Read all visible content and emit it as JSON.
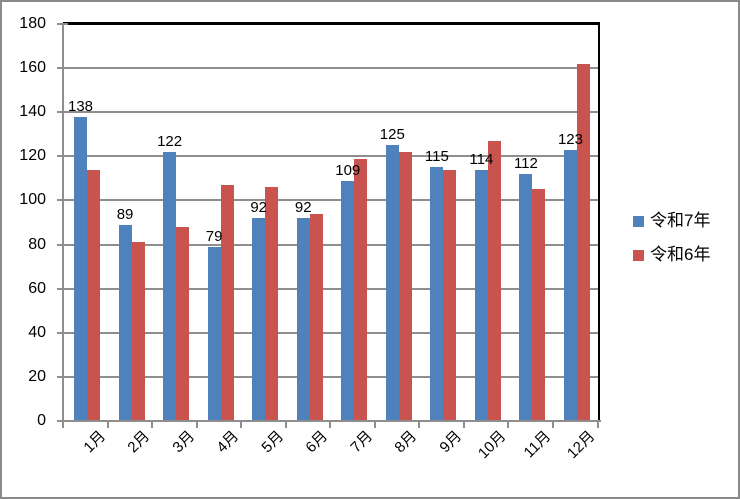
{
  "chart_data": {
    "type": "bar",
    "title": "",
    "xlabel": "",
    "ylabel": "",
    "categories": [
      "1月",
      "2月",
      "3月",
      "4月",
      "5月",
      "6月",
      "7月",
      "8月",
      "9月",
      "10月",
      "11月",
      "12月"
    ],
    "series": [
      {
        "name": "令和7年",
        "color": "#4F81BD",
        "values": [
          138,
          89,
          122,
          79,
          92,
          92,
          109,
          125,
          115,
          114,
          112,
          123
        ],
        "data_labels": true
      },
      {
        "name": "令和6年",
        "color": "#C9534F",
        "values": [
          114,
          81,
          88,
          107,
          106,
          94,
          119,
          122,
          114,
          127,
          105,
          162
        ],
        "data_labels": false
      }
    ],
    "ylim": [
      0,
      180
    ],
    "ytick_interval": 20,
    "y_tick_labels": [
      "0",
      "20",
      "40",
      "60",
      "80",
      "100",
      "120",
      "140",
      "160",
      "180"
    ],
    "grid": true,
    "legend_position": "right",
    "colors": {
      "gridline": "#8E8E8E",
      "axis": "#8E8E8E",
      "plot_border": "#000000",
      "outer_border": "#8A8A8A",
      "label_text": "#000000"
    }
  }
}
